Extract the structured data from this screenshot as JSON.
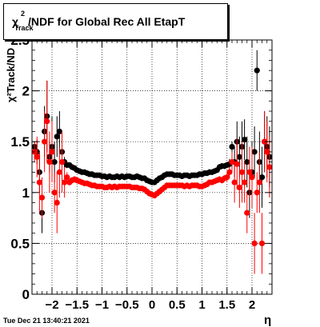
{
  "title": "χ²Track/NDF for Global Rec All EtapT",
  "title_parts": {
    "chi": "χ",
    "sup": "2",
    "sub": "Track",
    "rest": "/NDF for Global Rec All EtapT"
  },
  "timestamp": "Tue Dec 21 13:40:21 2021",
  "chart_data": {
    "type": "scatter",
    "title": "χ²Track/NDF for Global Rec All EtapT",
    "xlabel": "η",
    "ylabel": "χ²Track/NDF",
    "xlim": [
      -2.4,
      2.4
    ],
    "ylim": [
      0,
      2.5
    ],
    "x_ticks": [
      -2,
      -1.5,
      -1,
      -0.5,
      0,
      0.5,
      1,
      1.5,
      2
    ],
    "x_tick_labels": [
      "−2",
      "−1.5",
      "−1",
      "−0.5",
      "0",
      "0.5",
      "1",
      "1.5",
      "2"
    ],
    "y_ticks": [
      0,
      0.5,
      1,
      1.5,
      2,
      2.5
    ],
    "y_tick_labels": [
      "0",
      "0.5",
      "1",
      "1.5",
      "2",
      "2.5"
    ],
    "grid": true,
    "series": [
      {
        "color": "#000000",
        "points": [
          [
            -2.35,
            1.45,
            0.05
          ],
          [
            -2.3,
            1.4,
            0.12
          ],
          [
            -2.25,
            1.2,
            0.2
          ],
          [
            -2.2,
            0.8,
            0.2
          ],
          [
            -2.15,
            1.6,
            0.25
          ],
          [
            -2.1,
            1.75,
            0.35
          ],
          [
            -2.05,
            1.35,
            0.15
          ],
          [
            -2.0,
            1.45,
            0.3
          ],
          [
            -1.95,
            1.3,
            0.2
          ],
          [
            -1.9,
            1.55,
            0.2
          ],
          [
            -1.85,
            1.6,
            0.2
          ],
          [
            -1.8,
            1.4,
            0.2
          ],
          [
            -1.75,
            1.3,
            0.05
          ],
          [
            -1.7,
            1.27,
            0.03
          ],
          [
            -1.65,
            1.27,
            0.02
          ],
          [
            -1.6,
            1.25,
            0.02
          ],
          [
            -1.55,
            1.24,
            0.02
          ],
          [
            -1.5,
            1.22,
            0.02
          ],
          [
            -1.45,
            1.21,
            0.02
          ],
          [
            -1.4,
            1.2,
            0.02
          ],
          [
            -1.35,
            1.2,
            0.02
          ],
          [
            -1.3,
            1.19,
            0.02
          ],
          [
            -1.25,
            1.18,
            0.02
          ],
          [
            -1.2,
            1.18,
            0.02
          ],
          [
            -1.15,
            1.17,
            0.02
          ],
          [
            -1.1,
            1.17,
            0.02
          ],
          [
            -1.05,
            1.17,
            0.02
          ],
          [
            -1.0,
            1.16,
            0.02
          ],
          [
            -0.95,
            1.16,
            0.02
          ],
          [
            -0.9,
            1.15,
            0.02
          ],
          [
            -0.85,
            1.16,
            0.02
          ],
          [
            -0.8,
            1.15,
            0.02
          ],
          [
            -0.75,
            1.15,
            0.02
          ],
          [
            -0.7,
            1.16,
            0.02
          ],
          [
            -0.65,
            1.15,
            0.02
          ],
          [
            -0.6,
            1.16,
            0.02
          ],
          [
            -0.55,
            1.15,
            0.02
          ],
          [
            -0.5,
            1.16,
            0.02
          ],
          [
            -0.45,
            1.16,
            0.02
          ],
          [
            -0.4,
            1.15,
            0.02
          ],
          [
            -0.35,
            1.15,
            0.02
          ],
          [
            -0.3,
            1.16,
            0.02
          ],
          [
            -0.25,
            1.15,
            0.02
          ],
          [
            -0.2,
            1.14,
            0.02
          ],
          [
            -0.15,
            1.14,
            0.02
          ],
          [
            -0.1,
            1.12,
            0.02
          ],
          [
            -0.05,
            1.11,
            0.02
          ],
          [
            0.0,
            1.1,
            0.02
          ],
          [
            0.05,
            1.1,
            0.02
          ],
          [
            0.1,
            1.12,
            0.02
          ],
          [
            0.15,
            1.14,
            0.02
          ],
          [
            0.2,
            1.15,
            0.02
          ],
          [
            0.25,
            1.17,
            0.02
          ],
          [
            0.3,
            1.18,
            0.02
          ],
          [
            0.35,
            1.18,
            0.02
          ],
          [
            0.4,
            1.18,
            0.02
          ],
          [
            0.45,
            1.17,
            0.02
          ],
          [
            0.5,
            1.17,
            0.02
          ],
          [
            0.55,
            1.17,
            0.02
          ],
          [
            0.6,
            1.16,
            0.02
          ],
          [
            0.65,
            1.17,
            0.02
          ],
          [
            0.7,
            1.17,
            0.02
          ],
          [
            0.75,
            1.16,
            0.02
          ],
          [
            0.8,
            1.17,
            0.02
          ],
          [
            0.85,
            1.17,
            0.02
          ],
          [
            0.9,
            1.17,
            0.02
          ],
          [
            0.95,
            1.18,
            0.02
          ],
          [
            1.0,
            1.18,
            0.02
          ],
          [
            1.05,
            1.19,
            0.02
          ],
          [
            1.1,
            1.19,
            0.02
          ],
          [
            1.15,
            1.2,
            0.02
          ],
          [
            1.2,
            1.2,
            0.02
          ],
          [
            1.25,
            1.21,
            0.02
          ],
          [
            1.3,
            1.22,
            0.02
          ],
          [
            1.35,
            1.25,
            0.03
          ],
          [
            1.4,
            1.26,
            0.03
          ],
          [
            1.45,
            1.26,
            0.03
          ],
          [
            1.5,
            1.27,
            0.03
          ],
          [
            1.55,
            1.28,
            0.05
          ],
          [
            1.6,
            1.45,
            0.05
          ],
          [
            1.65,
            1.3,
            0.15
          ],
          [
            1.7,
            1.5,
            0.2
          ],
          [
            1.75,
            1.35,
            0.2
          ],
          [
            1.8,
            1.45,
            0.25
          ],
          [
            1.85,
            1.52,
            0.2
          ],
          [
            1.9,
            1.3,
            0.25
          ],
          [
            1.95,
            1.0,
            0.25
          ],
          [
            2.0,
            1.2,
            0.3
          ],
          [
            2.05,
            1.4,
            0.25
          ],
          [
            2.1,
            2.2,
            0.2
          ],
          [
            2.15,
            1.3,
            0.3
          ],
          [
            2.2,
            1.15,
            0.3
          ],
          [
            2.25,
            1.5,
            0.3
          ],
          [
            2.3,
            1.45,
            0.3
          ],
          [
            2.35,
            1.35,
            0.3
          ]
        ]
      },
      {
        "color": "#ff0000",
        "points": [
          [
            -2.35,
            1.4,
            0.1
          ],
          [
            -2.3,
            1.35,
            0.2
          ],
          [
            -2.25,
            1.1,
            0.3
          ],
          [
            -2.2,
            0.95,
            0.2
          ],
          [
            -2.15,
            1.5,
            0.3
          ],
          [
            -2.1,
            1.7,
            0.4
          ],
          [
            -2.05,
            1.3,
            0.3
          ],
          [
            -2.0,
            1.4,
            0.3
          ],
          [
            -1.95,
            1.0,
            0.2
          ],
          [
            -1.9,
            0.9,
            0.3
          ],
          [
            -1.85,
            1.2,
            0.25
          ],
          [
            -1.8,
            1.3,
            0.3
          ],
          [
            -1.75,
            1.1,
            0.15
          ],
          [
            -1.7,
            1.15,
            0.05
          ],
          [
            -1.65,
            1.1,
            0.03
          ],
          [
            -1.6,
            1.12,
            0.03
          ],
          [
            -1.55,
            1.13,
            0.03
          ],
          [
            -1.5,
            1.12,
            0.03
          ],
          [
            -1.45,
            1.11,
            0.02
          ],
          [
            -1.4,
            1.1,
            0.02
          ],
          [
            -1.35,
            1.09,
            0.02
          ],
          [
            -1.3,
            1.09,
            0.02
          ],
          [
            -1.25,
            1.08,
            0.02
          ],
          [
            -1.2,
            1.07,
            0.02
          ],
          [
            -1.15,
            1.07,
            0.02
          ],
          [
            -1.1,
            1.06,
            0.02
          ],
          [
            -1.05,
            1.06,
            0.02
          ],
          [
            -1.0,
            1.06,
            0.02
          ],
          [
            -0.95,
            1.05,
            0.02
          ],
          [
            -0.9,
            1.05,
            0.02
          ],
          [
            -0.85,
            1.06,
            0.02
          ],
          [
            -0.8,
            1.05,
            0.02
          ],
          [
            -0.75,
            1.06,
            0.02
          ],
          [
            -0.7,
            1.05,
            0.02
          ],
          [
            -0.65,
            1.06,
            0.02
          ],
          [
            -0.6,
            1.06,
            0.02
          ],
          [
            -0.55,
            1.06,
            0.02
          ],
          [
            -0.5,
            1.06,
            0.02
          ],
          [
            -0.45,
            1.06,
            0.02
          ],
          [
            -0.4,
            1.05,
            0.02
          ],
          [
            -0.35,
            1.05,
            0.02
          ],
          [
            -0.3,
            1.05,
            0.02
          ],
          [
            -0.25,
            1.04,
            0.02
          ],
          [
            -0.2,
            1.04,
            0.02
          ],
          [
            -0.15,
            1.03,
            0.02
          ],
          [
            -0.1,
            1.01,
            0.02
          ],
          [
            -0.05,
            0.99,
            0.02
          ],
          [
            0.0,
            0.98,
            0.02
          ],
          [
            0.05,
            0.97,
            0.02
          ],
          [
            0.1,
            0.99,
            0.02
          ],
          [
            0.15,
            1.01,
            0.02
          ],
          [
            0.2,
            1.03,
            0.02
          ],
          [
            0.25,
            1.05,
            0.02
          ],
          [
            0.3,
            1.07,
            0.02
          ],
          [
            0.35,
            1.07,
            0.02
          ],
          [
            0.4,
            1.07,
            0.02
          ],
          [
            0.45,
            1.07,
            0.02
          ],
          [
            0.5,
            1.07,
            0.02
          ],
          [
            0.55,
            1.07,
            0.02
          ],
          [
            0.6,
            1.07,
            0.02
          ],
          [
            0.65,
            1.06,
            0.02
          ],
          [
            0.7,
            1.07,
            0.02
          ],
          [
            0.75,
            1.06,
            0.02
          ],
          [
            0.8,
            1.07,
            0.02
          ],
          [
            0.85,
            1.07,
            0.02
          ],
          [
            0.9,
            1.07,
            0.02
          ],
          [
            0.95,
            1.06,
            0.02
          ],
          [
            1.0,
            1.06,
            0.02
          ],
          [
            1.05,
            1.07,
            0.02
          ],
          [
            1.1,
            1.08,
            0.02
          ],
          [
            1.15,
            1.1,
            0.02
          ],
          [
            1.2,
            1.1,
            0.02
          ],
          [
            1.25,
            1.11,
            0.02
          ],
          [
            1.3,
            1.12,
            0.02
          ],
          [
            1.35,
            1.13,
            0.03
          ],
          [
            1.4,
            1.12,
            0.03
          ],
          [
            1.45,
            1.14,
            0.03
          ],
          [
            1.5,
            1.15,
            0.04
          ],
          [
            1.55,
            1.2,
            0.05
          ],
          [
            1.6,
            1.3,
            0.1
          ],
          [
            1.65,
            1.1,
            0.2
          ],
          [
            1.7,
            1.28,
            0.25
          ],
          [
            1.75,
            1.05,
            0.2
          ],
          [
            1.8,
            1.2,
            0.3
          ],
          [
            1.85,
            1.1,
            0.2
          ],
          [
            1.9,
            0.8,
            0.2
          ],
          [
            1.95,
            1.2,
            0.25
          ],
          [
            2.0,
            1.15,
            0.3
          ],
          [
            2.05,
            0.5,
            0.3
          ],
          [
            2.1,
            1.0,
            0.2
          ],
          [
            2.15,
            1.1,
            0.3
          ],
          [
            2.2,
            0.5,
            0.3
          ],
          [
            2.25,
            1.5,
            0.3
          ],
          [
            2.3,
            1.4,
            0.3
          ],
          [
            2.35,
            1.25,
            0.3
          ]
        ]
      }
    ]
  }
}
